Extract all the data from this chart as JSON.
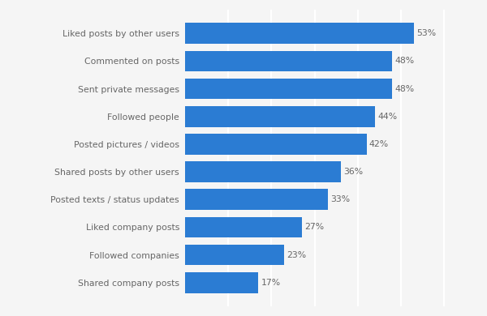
{
  "categories": [
    "Shared company posts",
    "Followed companies",
    "Liked company posts",
    "Posted texts / status updates",
    "Shared posts by other users",
    "Posted pictures / videos",
    "Followed people",
    "Sent private messages",
    "Commented on posts",
    "Liked posts by other users"
  ],
  "values": [
    17,
    23,
    27,
    33,
    36,
    42,
    44,
    48,
    48,
    53
  ],
  "bar_color": "#2b7cd3",
  "label_color": "#666666",
  "background_color": "#f5f5f5",
  "grid_color": "#ffffff",
  "value_label_color": "#666666",
  "bar_height": 0.75,
  "xlim": [
    0,
    62
  ],
  "figsize": [
    6.0,
    3.9
  ],
  "dpi": 100,
  "label_fontsize": 7.8,
  "value_fontsize": 7.8
}
